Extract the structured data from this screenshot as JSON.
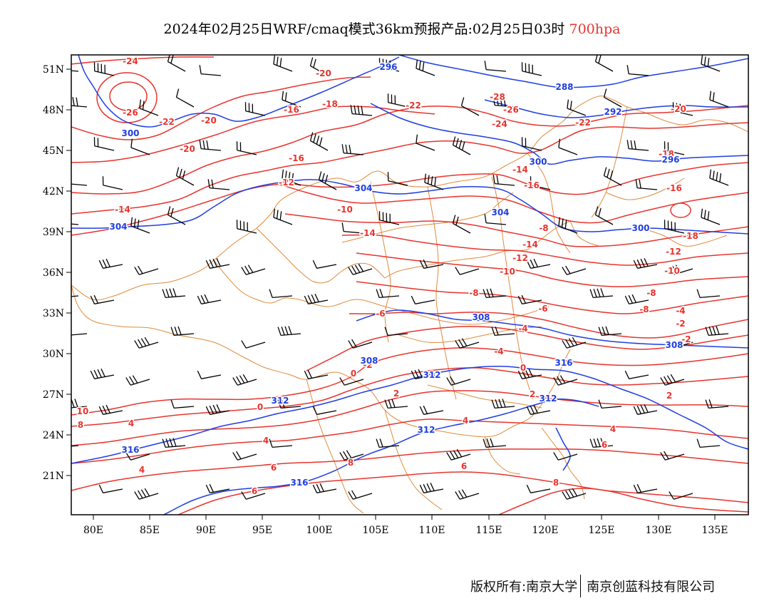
{
  "title": {
    "main": "2024年02月25日WRF/cmaq模式36km预报产品:02月25日03时",
    "level": "700hpa"
  },
  "colors": {
    "temperature": "#e8342e",
    "height": "#1f3ee0",
    "border": "#e08a3c",
    "wind": "#000000",
    "frame": "#000000"
  },
  "axes": {
    "lat_labels": [
      "51N",
      "48N",
      "45N",
      "42N",
      "39N",
      "36N",
      "33N",
      "30N",
      "27N",
      "24N",
      "21N"
    ],
    "lon_labels": [
      "80E",
      "85E",
      "90E",
      "95E",
      "100E",
      "105E",
      "110E",
      "115E",
      "120E",
      "125E",
      "130E",
      "135E"
    ]
  },
  "temperature_labels": [
    "-24",
    "-26",
    "-22",
    "-20",
    "-20",
    "-16",
    "-18",
    "-22",
    "-28",
    "-26",
    "-24",
    "-20",
    "-22",
    "-20",
    "-16",
    "-14",
    "-12",
    "-10",
    "-14",
    "-18",
    "-16",
    "-16",
    "-18",
    "-14",
    "-8",
    "-14",
    "-12",
    "-12",
    "-10",
    "-10",
    "-8",
    "-8",
    "-6",
    "-8",
    "-6",
    "-4",
    "-4",
    "-2",
    "-2",
    "-4",
    "-2",
    "0",
    "0",
    "0",
    "2",
    "2",
    "2",
    "4",
    "4",
    "4",
    "4",
    "4",
    "6",
    "6",
    "6",
    "6",
    "8",
    "8",
    "8",
    "10"
  ],
  "height_labels": [
    "296",
    "288",
    "292",
    "296",
    "300",
    "300",
    "304",
    "304",
    "304",
    "300",
    "308",
    "308",
    "308",
    "312",
    "312",
    "312",
    "316",
    "316",
    "312",
    "316"
  ],
  "footer": {
    "left": "版权所有:南京大学",
    "right": "南京创蓝科技有限公司"
  }
}
